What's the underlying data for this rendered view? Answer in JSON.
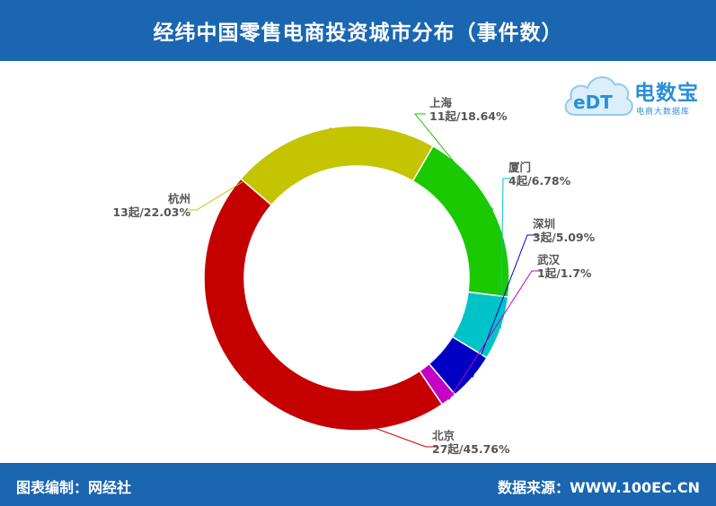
{
  "header": {
    "title": "经纬中国零售电商投资城市分布（事件数）"
  },
  "footer": {
    "left": "图表编制：网经社",
    "right": "数据来源：WWW.100EC.CN"
  },
  "logo": {
    "mark": "eDT",
    "name": "电数宝",
    "subtitle": "电商大数据库"
  },
  "chart_data": {
    "type": "pie",
    "donut": true,
    "title": "经纬中国零售电商投资城市分布（事件数）",
    "unit": "起",
    "slices": [
      {
        "name": "上海",
        "value": 11,
        "percent": "18.64%",
        "label": "11起/18.64%",
        "color": "#1ac900"
      },
      {
        "name": "厦门",
        "value": 4,
        "percent": "6.78%",
        "label": "4起/6.78%",
        "color": "#00c3c8"
      },
      {
        "name": "深圳",
        "value": 3,
        "percent": "5.09%",
        "label": "3起/5.09%",
        "color": "#0000c4"
      },
      {
        "name": "武汉",
        "value": 1,
        "percent": "1.7%",
        "label": "1起/1.7%",
        "color": "#c400c4"
      },
      {
        "name": "北京",
        "value": 27,
        "percent": "45.76%",
        "label": "27起/45.76%",
        "color": "#c40000"
      },
      {
        "name": "杭州",
        "value": 13,
        "percent": "22.03%",
        "label": "13起/22.03%",
        "color": "#c4c400"
      }
    ],
    "start_angle_deg": -60,
    "direction": "clockwise"
  }
}
